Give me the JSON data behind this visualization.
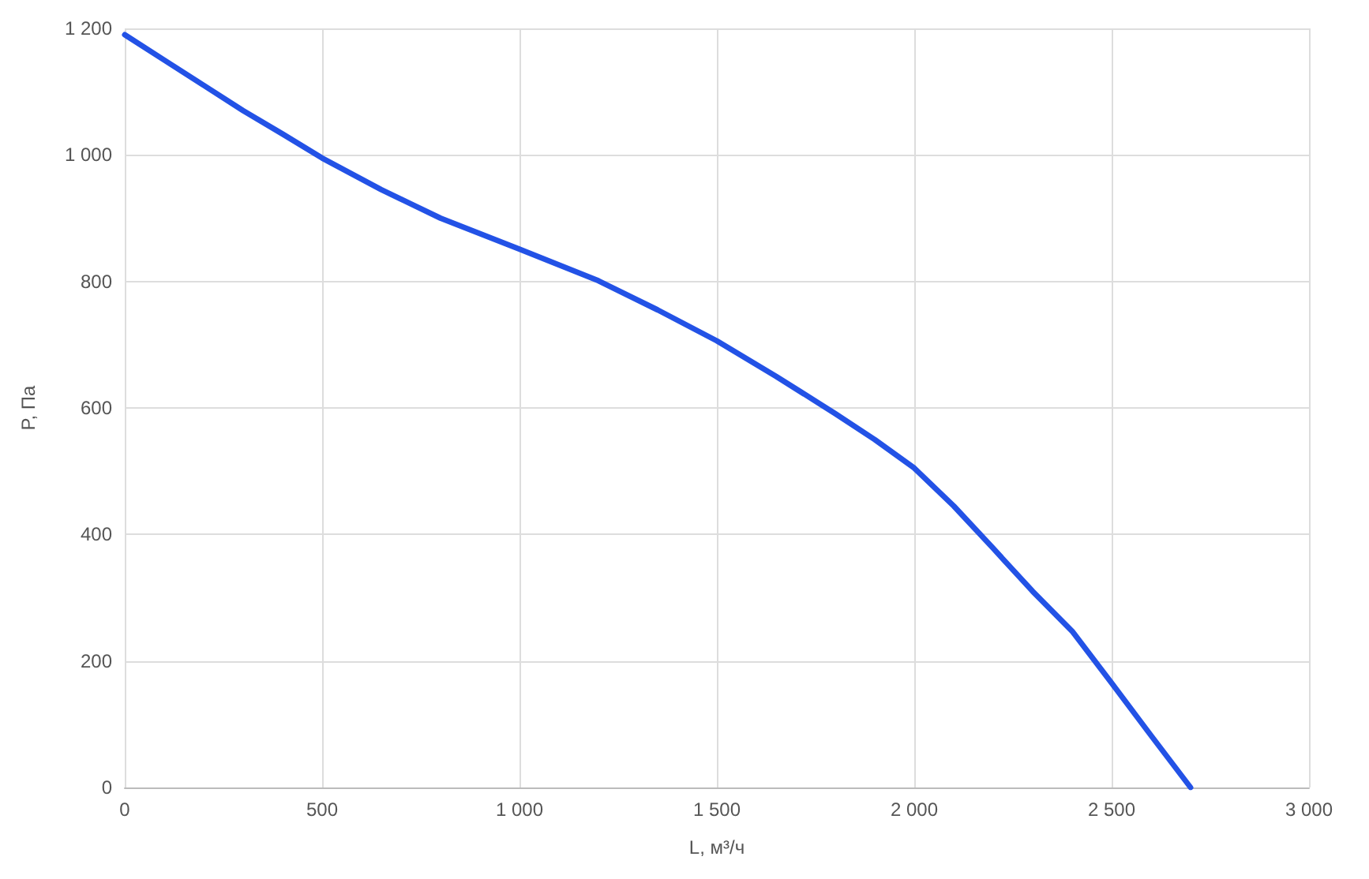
{
  "chart_data": {
    "type": "line",
    "xlabel": "L, м³/ч",
    "ylabel": "P, Па",
    "series": [
      {
        "color": "#2352e6",
        "x": [
          0,
          100,
          200,
          300,
          400,
          500,
          650,
          800,
          1000,
          1200,
          1350,
          1500,
          1650,
          1800,
          1900,
          2000,
          2100,
          2200,
          2300,
          2400,
          2500,
          2600,
          2700
        ],
        "values": [
          1190,
          1150,
          1110,
          1070,
          1033,
          995,
          945,
          900,
          851,
          801,
          755,
          706,
          650,
          591,
          550,
          505,
          445,
          378,
          310,
          247,
          165,
          82,
          0
        ]
      }
    ],
    "xlim": [
      0,
      3000
    ],
    "xticks": [
      0,
      500,
      {
        "value": 1000,
        "label": "1 000"
      },
      {
        "value": 1500,
        "label": "1 500"
      },
      {
        "value": 2000,
        "label": "2 000"
      },
      {
        "value": 2500,
        "label": "2 500"
      },
      {
        "value": 3000,
        "label": "3 000"
      }
    ],
    "ylim": [
      0,
      1200
    ],
    "yticks": [
      0,
      200,
      400,
      600,
      800,
      {
        "value": 1000,
        "label": "1 000"
      },
      {
        "value": 1200,
        "label": "1 200"
      }
    ],
    "grid": true,
    "marker": "none",
    "line_style": "solid"
  }
}
